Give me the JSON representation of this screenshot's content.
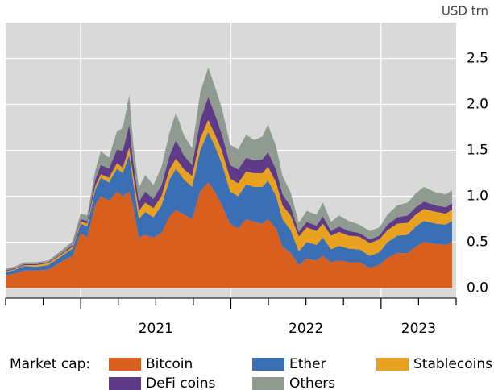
{
  "chart_data": {
    "type": "stacked_area",
    "unit": "USD trn",
    "legend_title": "Market cap:",
    "x": [
      2020.5,
      2020.57,
      2020.624,
      2020.704,
      2020.785,
      2020.866,
      2020.946,
      2021.0,
      2021.043,
      2021.097,
      2021.134,
      2021.188,
      2021.242,
      2021.28,
      2021.323,
      2021.349,
      2021.387,
      2021.43,
      2021.484,
      2021.538,
      2021.591,
      2021.634,
      2021.688,
      2021.742,
      2021.796,
      2021.849,
      2021.892,
      2021.941,
      2021.995,
      2022.048,
      2022.102,
      2022.156,
      2022.21,
      2022.247,
      2022.301,
      2022.344,
      2022.398,
      2022.452,
      2022.505,
      2022.57,
      2022.613,
      2022.667,
      2022.72,
      2022.785,
      2022.855,
      2022.925,
      2022.989,
      2023.043,
      2023.108,
      2023.177,
      2023.231,
      2023.285,
      2023.366,
      2023.43,
      2023.473
    ],
    "series": [
      {
        "name": "Bitcoin",
        "color": "#d95f1e",
        "values": [
          0.14,
          0.16,
          0.19,
          0.19,
          0.2,
          0.28,
          0.35,
          0.6,
          0.55,
          0.9,
          1.0,
          0.95,
          1.05,
          1.0,
          1.05,
          0.9,
          0.55,
          0.58,
          0.55,
          0.6,
          0.78,
          0.85,
          0.8,
          0.75,
          1.05,
          1.15,
          1.05,
          0.9,
          0.7,
          0.65,
          0.75,
          0.72,
          0.7,
          0.75,
          0.65,
          0.45,
          0.38,
          0.25,
          0.32,
          0.3,
          0.35,
          0.28,
          0.3,
          0.28,
          0.28,
          0.22,
          0.25,
          0.33,
          0.38,
          0.38,
          0.45,
          0.5,
          0.48,
          0.47,
          0.5
        ]
      },
      {
        "name": "Ether",
        "color": "#3a6fb5",
        "values": [
          0.03,
          0.04,
          0.05,
          0.04,
          0.05,
          0.06,
          0.08,
          0.1,
          0.12,
          0.17,
          0.2,
          0.2,
          0.25,
          0.25,
          0.4,
          0.25,
          0.2,
          0.25,
          0.22,
          0.3,
          0.4,
          0.45,
          0.38,
          0.35,
          0.45,
          0.55,
          0.5,
          0.45,
          0.35,
          0.35,
          0.38,
          0.38,
          0.4,
          0.42,
          0.35,
          0.3,
          0.25,
          0.15,
          0.18,
          0.17,
          0.2,
          0.14,
          0.16,
          0.15,
          0.14,
          0.13,
          0.14,
          0.17,
          0.19,
          0.2,
          0.22,
          0.23,
          0.22,
          0.22,
          0.23
        ]
      },
      {
        "name": "Stablecoins",
        "color": "#e8a21f",
        "values": [
          0.01,
          0.01,
          0.01,
          0.02,
          0.02,
          0.02,
          0.02,
          0.03,
          0.03,
          0.04,
          0.04,
          0.05,
          0.06,
          0.06,
          0.08,
          0.08,
          0.09,
          0.1,
          0.1,
          0.1,
          0.11,
          0.11,
          0.11,
          0.12,
          0.13,
          0.13,
          0.13,
          0.14,
          0.14,
          0.14,
          0.14,
          0.15,
          0.15,
          0.15,
          0.15,
          0.15,
          0.16,
          0.16,
          0.16,
          0.15,
          0.15,
          0.15,
          0.15,
          0.14,
          0.14,
          0.14,
          0.14,
          0.13,
          0.13,
          0.13,
          0.13,
          0.13,
          0.13,
          0.12,
          0.12
        ]
      },
      {
        "name": "DeFi coins",
        "color": "#5e3a87",
        "values": [
          0.01,
          0.01,
          0.01,
          0.01,
          0.01,
          0.01,
          0.02,
          0.02,
          0.03,
          0.07,
          0.1,
          0.1,
          0.15,
          0.18,
          0.25,
          0.15,
          0.1,
          0.12,
          0.1,
          0.12,
          0.15,
          0.2,
          0.15,
          0.12,
          0.2,
          0.25,
          0.22,
          0.18,
          0.15,
          0.15,
          0.15,
          0.14,
          0.15,
          0.16,
          0.14,
          0.12,
          0.1,
          0.05,
          0.06,
          0.06,
          0.08,
          0.05,
          0.06,
          0.05,
          0.04,
          0.04,
          0.04,
          0.06,
          0.07,
          0.08,
          0.08,
          0.08,
          0.07,
          0.07,
          0.07
        ]
      },
      {
        "name": "Others",
        "color": "#8f9b90",
        "values": [
          0.02,
          0.02,
          0.02,
          0.02,
          0.02,
          0.03,
          0.04,
          0.06,
          0.06,
          0.1,
          0.15,
          0.12,
          0.2,
          0.25,
          0.32,
          0.2,
          0.15,
          0.18,
          0.15,
          0.2,
          0.25,
          0.3,
          0.22,
          0.18,
          0.3,
          0.32,
          0.3,
          0.28,
          0.22,
          0.22,
          0.25,
          0.22,
          0.25,
          0.3,
          0.25,
          0.2,
          0.15,
          0.1,
          0.12,
          0.12,
          0.15,
          0.1,
          0.12,
          0.11,
          0.09,
          0.09,
          0.09,
          0.11,
          0.13,
          0.14,
          0.15,
          0.16,
          0.14,
          0.14,
          0.14
        ]
      }
    ],
    "xlim": [
      2020.5,
      2023.5
    ],
    "xticks": [
      2020.5,
      2020.75,
      2021.0,
      2021.25,
      2021.5,
      2021.75,
      2022.0,
      2022.25,
      2022.5,
      2022.75,
      2023.0,
      2023.25,
      2023.5
    ],
    "xgrid": [
      2021.0,
      2022.0,
      2023.0
    ],
    "xlabels": [
      {
        "value": 2021.5,
        "label": "2021"
      },
      {
        "value": 2022.5,
        "label": "2022"
      },
      {
        "value": 2023.25,
        "label": "2023"
      }
    ],
    "ylim": [
      -0.11,
      2.89
    ],
    "yticks": [
      {
        "value": 0,
        "label": "0.0"
      },
      0.5,
      {
        "value": 1,
        "label": "1.0"
      },
      1.5,
      {
        "value": 2,
        "label": "2.0"
      },
      2.5
    ],
    "grid": true
  }
}
